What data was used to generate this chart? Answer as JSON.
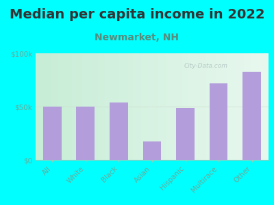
{
  "title": "Median per capita income in 2022",
  "subtitle": "Newmarket, NH",
  "categories": [
    "All",
    "White",
    "Black",
    "Asian",
    "Hispanic",
    "Multirace",
    "Other"
  ],
  "values": [
    50000,
    50000,
    54000,
    17000,
    49000,
    72000,
    83000
  ],
  "bar_color": "#b39ddb",
  "background_outer": "#00FFFF",
  "ylabel_ticks": [
    0,
    50000,
    100000
  ],
  "ylabel_labels": [
    "$0",
    "$50k",
    "$100k"
  ],
  "ylim": [
    0,
    100000
  ],
  "title_fontsize": 14,
  "subtitle_fontsize": 10,
  "tick_fontsize": 7.5,
  "title_color": "#333333",
  "subtitle_color": "#5a8a7a",
  "tick_color": "#6aaa99",
  "watermark": "City-Data.com",
  "bg_left_color": "#c8e6d8",
  "bg_right_color": "#f0f8f0",
  "bg_top_color": "#ffffff"
}
